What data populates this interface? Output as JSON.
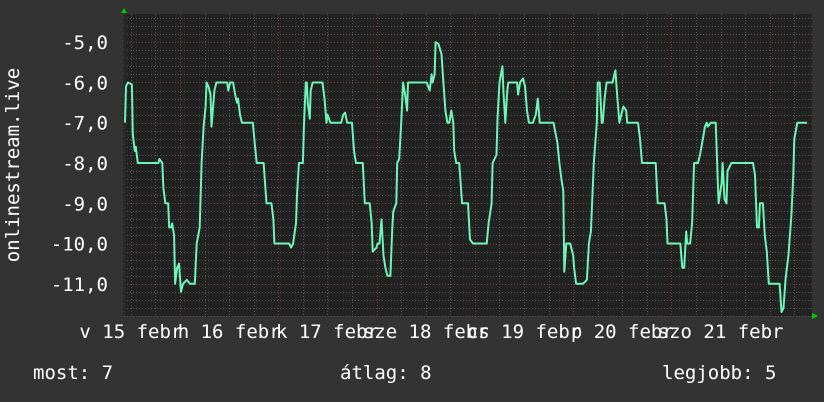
{
  "chart_data": {
    "type": "line",
    "title": "",
    "ylabel": "onlinestream.live",
    "xlabel": "",
    "ylim": [
      -11.8,
      -4.3
    ],
    "xlim": [
      15.43,
      22.43
    ],
    "x_unit": "day of February",
    "yticks": [
      "-5,0",
      "-6,0",
      "-7,0",
      "-8,0",
      "-9,0",
      "-10,0",
      "-11,0"
    ],
    "ytick_values": [
      -5,
      -6,
      -7,
      -8,
      -9,
      -10,
      -11
    ],
    "xticks": [
      "v 15 febr",
      "h 16 febr",
      "k 17 febr",
      "sze 18 febr",
      "cs 19 febr",
      "p 20 febr",
      "szo 21 febr"
    ],
    "xtick_values": [
      15.5,
      16.5,
      17.5,
      18.5,
      19.5,
      20.5,
      21.5
    ],
    "grid": true,
    "colors": {
      "background": "#333333",
      "plot": "#222222",
      "line": "#6ef5b8",
      "major_grid": "#7a3a3a",
      "minor_grid": "#555555",
      "arrow": "#00cc00"
    },
    "series": [
      {
        "points": [
          [
            15.44,
            -7.0
          ],
          [
            15.45,
            -6.1
          ],
          [
            15.47,
            -6.0
          ],
          [
            15.51,
            -6.05
          ],
          [
            15.52,
            -7.3
          ],
          [
            15.54,
            -7.7
          ],
          [
            15.55,
            -7.6
          ],
          [
            15.57,
            -8.0
          ],
          [
            15.78,
            -8.0
          ],
          [
            15.79,
            -7.9
          ],
          [
            15.82,
            -8.0
          ],
          [
            15.83,
            -8.6
          ],
          [
            15.85,
            -9.0
          ],
          [
            15.88,
            -9.0
          ],
          [
            15.89,
            -9.6
          ],
          [
            15.91,
            -9.6
          ],
          [
            15.92,
            -9.5
          ],
          [
            15.94,
            -9.8
          ],
          [
            15.95,
            -11.0
          ],
          [
            15.97,
            -10.6
          ],
          [
            15.99,
            -10.5
          ],
          [
            16.01,
            -11.2
          ],
          [
            16.03,
            -11.0
          ],
          [
            16.07,
            -10.9
          ],
          [
            16.1,
            -11.0
          ],
          [
            16.15,
            -11.0
          ],
          [
            16.17,
            -10.0
          ],
          [
            16.2,
            -9.6
          ],
          [
            16.22,
            -8.0
          ],
          [
            16.24,
            -7.1
          ],
          [
            16.26,
            -6.6
          ],
          [
            16.27,
            -6.0
          ],
          [
            16.29,
            -6.1
          ],
          [
            16.31,
            -6.3
          ],
          [
            16.32,
            -7.1
          ],
          [
            16.35,
            -6.2
          ],
          [
            16.37,
            -6.0
          ],
          [
            16.48,
            -6.0
          ],
          [
            16.49,
            -6.2
          ],
          [
            16.51,
            -6.0
          ],
          [
            16.54,
            -6.0
          ],
          [
            16.56,
            -6.3
          ],
          [
            16.58,
            -6.5
          ],
          [
            16.59,
            -6.4
          ],
          [
            16.61,
            -6.8
          ],
          [
            16.63,
            -7.0
          ],
          [
            16.74,
            -7.0
          ],
          [
            16.76,
            -7.5
          ],
          [
            16.78,
            -8.0
          ],
          [
            16.85,
            -8.0
          ],
          [
            16.88,
            -9.0
          ],
          [
            16.93,
            -9.0
          ],
          [
            16.95,
            -9.4
          ],
          [
            16.96,
            -10.0
          ],
          [
            17.11,
            -10.0
          ],
          [
            17.13,
            -10.1
          ],
          [
            17.15,
            -10.0
          ],
          [
            17.18,
            -9.5
          ],
          [
            17.19,
            -8.8
          ],
          [
            17.21,
            -8.0
          ],
          [
            17.25,
            -8.0
          ],
          [
            17.26,
            -7.1
          ],
          [
            17.28,
            -6.0
          ],
          [
            17.29,
            -6.0
          ],
          [
            17.3,
            -6.5
          ],
          [
            17.32,
            -6.9
          ],
          [
            17.33,
            -6.2
          ],
          [
            17.35,
            -6.0
          ],
          [
            17.45,
            -6.0
          ],
          [
            17.47,
            -6.4
          ],
          [
            17.49,
            -7.0
          ],
          [
            17.5,
            -6.8
          ],
          [
            17.53,
            -7.0
          ],
          [
            17.64,
            -7.0
          ],
          [
            17.66,
            -6.8
          ],
          [
            17.68,
            -6.75
          ],
          [
            17.7,
            -7.0
          ],
          [
            17.75,
            -7.0
          ],
          [
            17.77,
            -7.7
          ],
          [
            17.79,
            -8.0
          ],
          [
            17.86,
            -8.0
          ],
          [
            17.88,
            -9.0
          ],
          [
            17.93,
            -9.0
          ],
          [
            17.95,
            -9.5
          ],
          [
            17.96,
            -10.2
          ],
          [
            18.0,
            -10.1
          ],
          [
            18.01,
            -10.0
          ],
          [
            18.03,
            -10.0
          ],
          [
            18.05,
            -9.4
          ],
          [
            18.07,
            -10.3
          ],
          [
            18.09,
            -10.6
          ],
          [
            18.11,
            -10.8
          ],
          [
            18.14,
            -10.8
          ],
          [
            18.16,
            -9.6
          ],
          [
            18.17,
            -9.2
          ],
          [
            18.2,
            -9.0
          ],
          [
            18.21,
            -8.0
          ],
          [
            18.23,
            -7.9
          ],
          [
            18.25,
            -7.0
          ],
          [
            18.27,
            -6.0
          ],
          [
            18.29,
            -6.3
          ],
          [
            18.31,
            -6.7
          ],
          [
            18.32,
            -6.0
          ],
          [
            18.51,
            -6.0
          ],
          [
            18.54,
            -6.2
          ],
          [
            18.56,
            -5.8
          ],
          [
            18.57,
            -6.0
          ],
          [
            18.59,
            -5.8
          ],
          [
            18.6,
            -5.0
          ],
          [
            18.63,
            -5.05
          ],
          [
            18.66,
            -5.3
          ],
          [
            18.68,
            -6.0
          ],
          [
            18.7,
            -6.7
          ],
          [
            18.72,
            -7.0
          ],
          [
            18.74,
            -7.0
          ],
          [
            18.76,
            -6.7
          ],
          [
            18.78,
            -7.0
          ],
          [
            18.79,
            -7.7
          ],
          [
            18.81,
            -8.0
          ],
          [
            18.84,
            -8.0
          ],
          [
            18.87,
            -9.0
          ],
          [
            18.93,
            -9.0
          ],
          [
            18.95,
            -9.9
          ],
          [
            18.98,
            -10.0
          ],
          [
            19.12,
            -10.0
          ],
          [
            19.14,
            -9.5
          ],
          [
            19.17,
            -9.0
          ],
          [
            19.18,
            -8.0
          ],
          [
            19.22,
            -7.8
          ],
          [
            19.23,
            -6.9
          ],
          [
            19.25,
            -6.0
          ],
          [
            19.28,
            -5.6
          ],
          [
            19.29,
            -6.2
          ],
          [
            19.31,
            -7.0
          ],
          [
            19.33,
            -6.2
          ],
          [
            19.34,
            -6.0
          ],
          [
            19.43,
            -6.0
          ],
          [
            19.44,
            -6.3
          ],
          [
            19.46,
            -6.0
          ],
          [
            19.49,
            -5.9
          ],
          [
            19.51,
            -6.1
          ],
          [
            19.53,
            -6.7
          ],
          [
            19.55,
            -7.0
          ],
          [
            19.59,
            -7.0
          ],
          [
            19.62,
            -6.8
          ],
          [
            19.64,
            -6.4
          ],
          [
            19.66,
            -7.0
          ],
          [
            19.8,
            -7.0
          ],
          [
            19.84,
            -7.5
          ],
          [
            19.86,
            -8.0
          ],
          [
            19.88,
            -8.4
          ],
          [
            19.9,
            -8.7
          ],
          [
            19.91,
            -10.7
          ],
          [
            19.93,
            -10.0
          ],
          [
            19.97,
            -10.0
          ],
          [
            20.0,
            -10.3
          ],
          [
            20.01,
            -10.6
          ],
          [
            20.03,
            -11.0
          ],
          [
            20.1,
            -11.0
          ],
          [
            20.14,
            -10.9
          ],
          [
            20.16,
            -10.0
          ],
          [
            20.18,
            -9.7
          ],
          [
            20.2,
            -8.6
          ],
          [
            20.21,
            -8.0
          ],
          [
            20.24,
            -7.0
          ],
          [
            20.25,
            -6.0
          ],
          [
            20.27,
            -6.0
          ],
          [
            20.29,
            -7.0
          ],
          [
            20.3,
            -7.0
          ],
          [
            20.32,
            -6.4
          ],
          [
            20.34,
            -6.0
          ],
          [
            20.4,
            -6.0
          ],
          [
            20.43,
            -5.7
          ],
          [
            20.45,
            -6.4
          ],
          [
            20.47,
            -7.0
          ],
          [
            20.49,
            -6.8
          ],
          [
            20.51,
            -6.6
          ],
          [
            20.54,
            -6.7
          ],
          [
            20.55,
            -7.0
          ],
          [
            20.66,
            -7.0
          ],
          [
            20.68,
            -7.4
          ],
          [
            20.7,
            -8.0
          ],
          [
            20.84,
            -8.0
          ],
          [
            20.86,
            -9.0
          ],
          [
            20.93,
            -9.0
          ],
          [
            20.95,
            -9.4
          ],
          [
            20.96,
            -10.0
          ],
          [
            21.09,
            -10.0
          ],
          [
            21.11,
            -10.6
          ],
          [
            21.13,
            -10.6
          ],
          [
            21.15,
            -9.7
          ],
          [
            21.16,
            -10.0
          ],
          [
            21.19,
            -10.0
          ],
          [
            21.21,
            -9.5
          ],
          [
            21.23,
            -8.0
          ],
          [
            21.27,
            -8.0
          ],
          [
            21.29,
            -7.8
          ],
          [
            21.32,
            -7.4
          ],
          [
            21.34,
            -7.1
          ],
          [
            21.36,
            -7.0
          ],
          [
            21.37,
            -7.1
          ],
          [
            21.4,
            -7.0
          ],
          [
            21.45,
            -7.0
          ],
          [
            21.46,
            -7.7
          ],
          [
            21.48,
            -9.0
          ],
          [
            21.51,
            -8.5
          ],
          [
            21.52,
            -8.0
          ],
          [
            21.54,
            -8.9
          ],
          [
            21.56,
            -9.0
          ],
          [
            21.57,
            -8.2
          ],
          [
            21.61,
            -8.0
          ],
          [
            21.83,
            -8.0
          ],
          [
            21.85,
            -8.3
          ],
          [
            21.87,
            -9.6
          ],
          [
            21.89,
            -9.6
          ],
          [
            21.9,
            -9.0
          ],
          [
            21.93,
            -9.0
          ],
          [
            21.95,
            -9.8
          ],
          [
            21.97,
            -10.2
          ],
          [
            21.99,
            -11.0
          ],
          [
            22.1,
            -11.0
          ],
          [
            22.12,
            -11.7
          ],
          [
            22.14,
            -11.6
          ],
          [
            22.16,
            -10.9
          ],
          [
            22.19,
            -10.3
          ],
          [
            22.22,
            -9.3
          ],
          [
            22.24,
            -8.3
          ],
          [
            22.25,
            -7.4
          ],
          [
            22.28,
            -7.0
          ],
          [
            22.38,
            -7.0
          ]
        ]
      }
    ]
  },
  "legend": {
    "current": "most: 7",
    "average": "átlag: 8",
    "best": "legjobb: 5"
  }
}
